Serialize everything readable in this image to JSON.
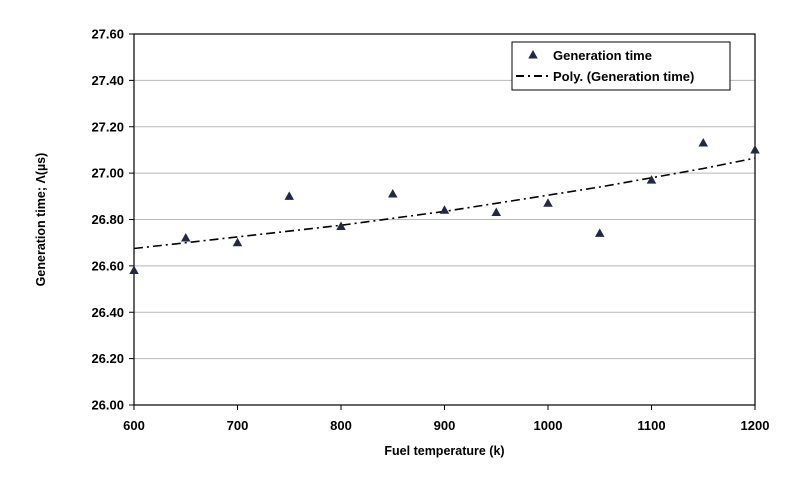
{
  "chart_data": {
    "type": "scatter",
    "xlabel": "Fuel temperature  (k)",
    "ylabel": "Generation time; Λ(µs)",
    "xlim": [
      600,
      1200
    ],
    "ylim": [
      26.0,
      27.6
    ],
    "x_ticks": [
      "600",
      "700",
      "800",
      "900",
      "1000",
      "1100",
      "1200"
    ],
    "y_ticks": [
      "26.00",
      "26.20",
      "26.40",
      "26.60",
      "26.80",
      "27.00",
      "27.20",
      "27.40",
      "27.60"
    ],
    "grid": "horizontal",
    "legend_position": "top-right",
    "series": [
      {
        "name": "Generation time",
        "marker": "triangle",
        "color": "#1f2a44",
        "x": [
          600,
          650,
          700,
          750,
          800,
          850,
          900,
          950,
          1000,
          1050,
          1100,
          1150,
          1200
        ],
        "y": [
          26.58,
          26.72,
          26.7,
          26.9,
          26.77,
          26.91,
          26.84,
          26.83,
          26.87,
          26.74,
          26.97,
          27.13,
          27.1
        ]
      },
      {
        "name": "Poly. (Generation time)",
        "style": "dash-dot",
        "color": "#000000",
        "x": [
          600,
          650,
          700,
          750,
          800,
          850,
          900,
          950,
          1000,
          1050,
          1100,
          1150,
          1200
        ],
        "y": [
          26.675,
          26.7,
          26.725,
          26.75,
          26.775,
          26.805,
          26.835,
          26.87,
          26.905,
          26.94,
          26.98,
          27.02,
          27.065
        ]
      }
    ]
  }
}
